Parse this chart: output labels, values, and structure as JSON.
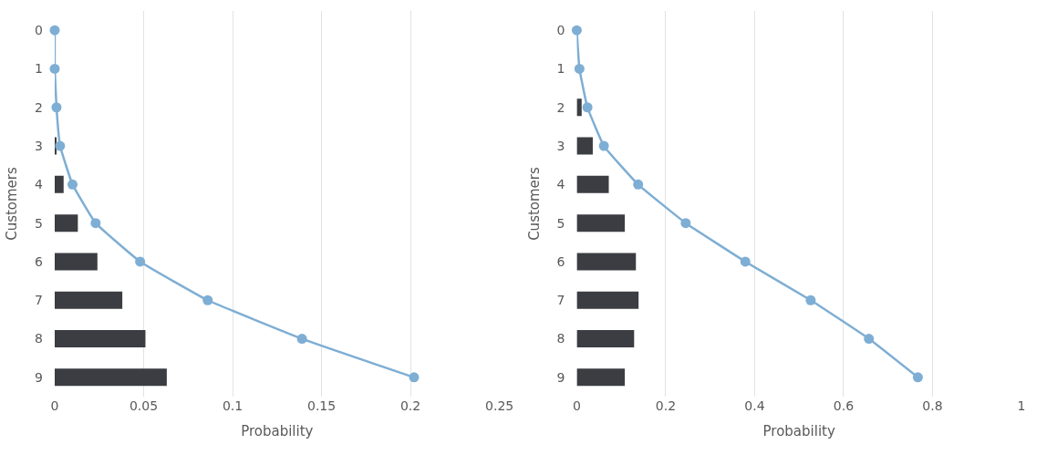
{
  "chart_data": [
    {
      "type": "bar",
      "orientation": "horizontal",
      "xlabel": "Probability",
      "ylabel": "Customers",
      "categories": [
        "0",
        "1",
        "2",
        "3",
        "4",
        "5",
        "6",
        "7",
        "8",
        "9"
      ],
      "xlim": [
        0,
        0.25
      ],
      "xticks": [
        0,
        0.05,
        0.1,
        0.15,
        0.2,
        0.25
      ],
      "grid": "x",
      "series": [
        {
          "color": "#3b3d42",
          "values": [
            0,
            0,
            0,
            0.001,
            0.005,
            0.013,
            0.024,
            0.038,
            0.051,
            0.063
          ]
        },
        {
          "type": "line",
          "color": "#7eaed4",
          "marker": "circle",
          "line_style": "solid",
          "values": [
            0,
            0,
            0.001,
            0.003,
            0.01,
            0.023,
            0.048,
            0.086,
            0.139,
            0.202
          ]
        }
      ]
    },
    {
      "type": "bar",
      "orientation": "horizontal",
      "xlabel": "Probability",
      "ylabel": "Customers",
      "categories": [
        "0",
        "1",
        "2",
        "3",
        "4",
        "5",
        "6",
        "7",
        "8",
        "9"
      ],
      "xlim": [
        0,
        1
      ],
      "xticks": [
        0,
        0.2,
        0.4,
        0.6,
        0.8,
        1
      ],
      "grid": "x",
      "series": [
        {
          "color": "#3b3d42",
          "values": [
            0,
            0,
            0.011,
            0.036,
            0.072,
            0.108,
            0.133,
            0.139,
            0.129,
            0.108
          ]
        },
        {
          "type": "line",
          "color": "#7eaed4",
          "marker": "circle",
          "line_style": "solid",
          "values": [
            0,
            0.006,
            0.024,
            0.061,
            0.138,
            0.245,
            0.379,
            0.526,
            0.657,
            0.767
          ]
        }
      ]
    }
  ]
}
